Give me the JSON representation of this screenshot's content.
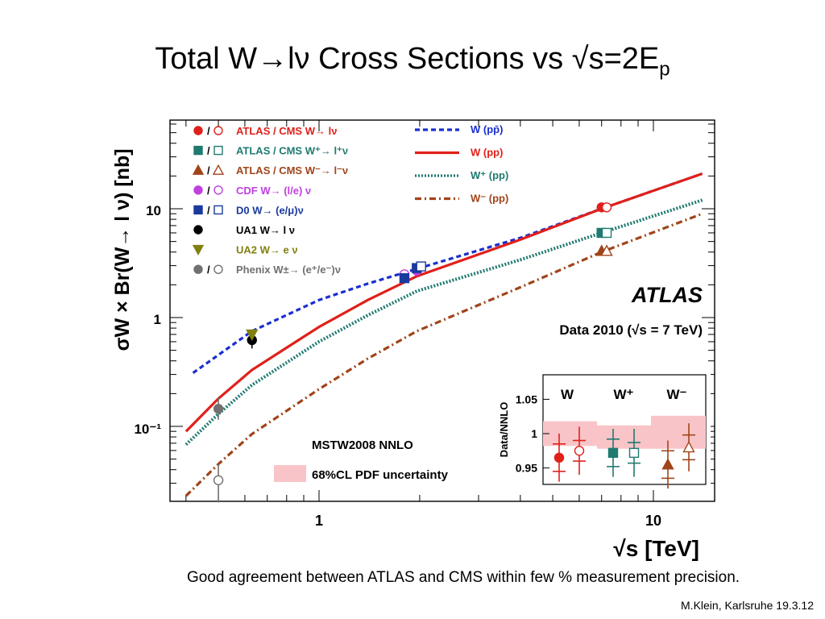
{
  "slide": {
    "title_main": "Total W→lν Cross Sections vs √s=2E",
    "title_sub": "p",
    "caption": "Good agreement between ATLAS and CMS within few % measurement precision.",
    "credit": "M.Klein, Karlsruhe 19.3.12"
  },
  "chart_data": [
    {
      "type": "line",
      "xscale": "log",
      "yscale": "log",
      "xlim": [
        0.4,
        14
      ],
      "ylim": [
        0.02,
        50
      ],
      "xlabel": "√s [TeV]",
      "ylabel": "σW × Br(W→ l ν) [nb]",
      "xticks": [
        "1",
        "10"
      ],
      "yticks": [
        "10⁻¹",
        "1",
        "10"
      ],
      "experiment": "ATLAS",
      "dataset": "Data 2010 (√s = 7 TeV)",
      "theory": "MSTW2008 NNLO",
      "band_label": "68%CL PDF uncertainty",
      "series": [
        {
          "name": "W (pp̄)",
          "color": "#1a2fd0",
          "style": "dashed",
          "x": [
            0.42,
            0.63,
            1.0,
            1.4,
            1.96,
            4.0,
            7.0,
            14.0
          ],
          "y": [
            0.31,
            0.75,
            1.45,
            2.05,
            2.8,
            5.4,
            10.0,
            21.0
          ]
        },
        {
          "name": "W (pp)",
          "color": "#e0201a",
          "style": "solid",
          "x": [
            0.4,
            0.5,
            0.63,
            1.0,
            1.4,
            1.96,
            4.0,
            7.0,
            14.0
          ],
          "y": [
            0.09,
            0.18,
            0.33,
            0.82,
            1.45,
            2.4,
            5.2,
            10.0,
            21.0
          ]
        },
        {
          "name": "W⁺ (pp)",
          "color": "#1f7a70",
          "style": "dotted",
          "x": [
            0.4,
            0.5,
            0.63,
            1.0,
            1.4,
            1.96,
            4.0,
            7.0,
            14.0
          ],
          "y": [
            0.068,
            0.13,
            0.24,
            0.6,
            1.05,
            1.75,
            3.4,
            6.0,
            12.0
          ]
        },
        {
          "name": "W⁻ (pp)",
          "color": "#a0441a",
          "style": "dashdot",
          "x": [
            0.4,
            0.5,
            0.63,
            1.0,
            1.4,
            1.96,
            4.0,
            7.0,
            14.0
          ],
          "y": [
            0.023,
            0.045,
            0.085,
            0.22,
            0.42,
            0.75,
            1.9,
            4.0,
            9.0
          ]
        }
      ],
      "points": [
        {
          "label": "ATLAS / CMS W→ lν",
          "marker": "circle",
          "color": "#e0201a",
          "data": [
            {
              "x": 7.0,
              "y": 10.3,
              "filled": true
            },
            {
              "x": 7.25,
              "y": 10.3,
              "filled": false
            }
          ]
        },
        {
          "label": "ATLAS / CMS W⁺→ l⁺ν",
          "marker": "square",
          "color": "#1f7a70",
          "data": [
            {
              "x": 7.0,
              "y": 6.0,
              "filled": true
            },
            {
              "x": 7.25,
              "y": 6.0,
              "filled": false
            }
          ]
        },
        {
          "label": "ATLAS / CMS W⁻→ l⁻ν",
          "marker": "triangle",
          "color": "#a0441a",
          "data": [
            {
              "x": 7.0,
              "y": 4.1,
              "filled": true
            },
            {
              "x": 7.25,
              "y": 4.1,
              "filled": false
            }
          ]
        },
        {
          "label": "CDF W→ (l/e) ν",
          "marker": "circle",
          "color": "#c040e0",
          "data": [
            {
              "x": 1.8,
              "y": 2.5,
              "filled": false
            },
            {
              "x": 1.96,
              "y": 2.7,
              "filled": true
            }
          ]
        },
        {
          "label": "D0 W→ (e/μ)ν",
          "marker": "square",
          "color": "#1a3a9e",
          "data": [
            {
              "x": 1.8,
              "y": 2.3,
              "filled": true
            },
            {
              "x": 1.96,
              "y": 2.85,
              "filled": true
            },
            {
              "x": 2.02,
              "y": 2.95,
              "filled": false
            }
          ]
        },
        {
          "label": "UA1 W→ l ν",
          "marker": "circle",
          "color": "#000000",
          "data": [
            {
              "x": 0.63,
              "y": 0.62,
              "filled": true,
              "err": [
                0.52,
                0.75
              ]
            }
          ]
        },
        {
          "label": "UA2 W→ e ν",
          "marker": "triangle-down",
          "color": "#808010",
          "data": [
            {
              "x": 0.63,
              "y": 0.7,
              "filled": true
            }
          ]
        },
        {
          "label": "Phenix W±→ (e⁺/e⁻)ν",
          "marker": "circle",
          "color": "#707070",
          "data": [
            {
              "x": 0.5,
              "y": 0.145,
              "filled": true,
              "err": [
                0.115,
                0.185
              ]
            },
            {
              "x": 0.5,
              "y": 0.032,
              "filled": false,
              "err": [
                0.02,
                0.045
              ]
            }
          ]
        }
      ]
    },
    {
      "type": "scatter",
      "ylabel": "Data/NNLO",
      "ylim": [
        0.915,
        1.085
      ],
      "yticks": [
        0.95,
        1,
        1.05
      ],
      "groups": [
        "W",
        "W⁺",
        "W⁻"
      ],
      "bands": [
        {
          "group": "W",
          "low": 0.982,
          "high": 1.018
        },
        {
          "group": "W⁺",
          "low": 0.978,
          "high": 1.012
        },
        {
          "group": "W⁻",
          "low": 0.978,
          "high": 1.026
        }
      ],
      "measurements": [
        {
          "group": "W",
          "experiment": "ATLAS",
          "value": 0.965,
          "stat": 0.02,
          "total": 0.035,
          "color": "#e0201a",
          "marker": "circle",
          "filled": true
        },
        {
          "group": "W",
          "experiment": "CMS",
          "value": 0.975,
          "stat": 0.015,
          "total": 0.035,
          "color": "#e0201a",
          "marker": "circle",
          "filled": false
        },
        {
          "group": "W⁺",
          "experiment": "ATLAS",
          "value": 0.972,
          "stat": 0.02,
          "total": 0.035,
          "color": "#1f7a70",
          "marker": "square",
          "filled": true
        },
        {
          "group": "W⁺",
          "experiment": "CMS",
          "value": 0.972,
          "stat": 0.015,
          "total": 0.035,
          "color": "#1f7a70",
          "marker": "square",
          "filled": false
        },
        {
          "group": "W⁻",
          "experiment": "ATLAS",
          "value": 0.955,
          "stat": 0.02,
          "total": 0.035,
          "color": "#a0441a",
          "marker": "triangle",
          "filled": true
        },
        {
          "group": "W⁻",
          "experiment": "CMS",
          "value": 0.98,
          "stat": 0.018,
          "total": 0.035,
          "color": "#a0441a",
          "marker": "triangle",
          "filled": false
        }
      ]
    }
  ]
}
